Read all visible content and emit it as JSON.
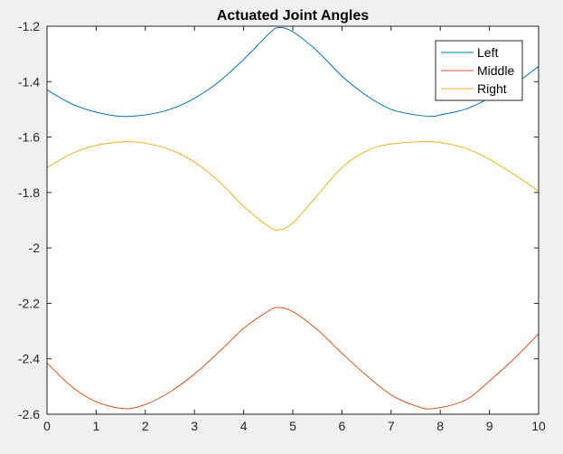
{
  "chart_data": {
    "type": "line",
    "title": "Actuated Joint Angles",
    "xlabel": "",
    "ylabel": "",
    "xlim": [
      0,
      10
    ],
    "ylim": [
      -2.6,
      -1.2
    ],
    "xticks": [
      0,
      1,
      2,
      3,
      4,
      5,
      6,
      7,
      8,
      9,
      10
    ],
    "yticks": [
      -2.6,
      -2.4,
      -2.2,
      -2.0,
      -1.8,
      -1.6,
      -1.4,
      -1.2
    ],
    "ytick_labels": [
      "-2.6",
      "-2.4",
      "-2.2",
      "-2",
      "-1.8",
      "-1.6",
      "-1.4",
      "-1.2"
    ],
    "grid": false,
    "legend_position": "top-right",
    "series": [
      {
        "name": "Left",
        "color": "#0072BD",
        "x": [
          0,
          0.5,
          1,
          1.5,
          2,
          2.5,
          3,
          3.5,
          4,
          4.5,
          4.7,
          5,
          5.5,
          6,
          6.5,
          7,
          7.5,
          7.85,
          8,
          8.5,
          9,
          9.5,
          10
        ],
        "y": [
          -1.43,
          -1.48,
          -1.51,
          -1.525,
          -1.52,
          -1.5,
          -1.46,
          -1.4,
          -1.32,
          -1.23,
          -1.205,
          -1.22,
          -1.29,
          -1.38,
          -1.45,
          -1.5,
          -1.52,
          -1.525,
          -1.52,
          -1.5,
          -1.46,
          -1.41,
          -1.345
        ]
      },
      {
        "name": "Middle",
        "color": "#D95319",
        "x": [
          0,
          0.5,
          1,
          1.57,
          2,
          2.5,
          3,
          3.5,
          4,
          4.5,
          4.71,
          5,
          5.5,
          6,
          6.5,
          7,
          7.5,
          7.85,
          8.5,
          9,
          9.5,
          10
        ],
        "y": [
          -2.415,
          -2.5,
          -2.555,
          -2.58,
          -2.565,
          -2.52,
          -2.455,
          -2.375,
          -2.29,
          -2.228,
          -2.215,
          -2.23,
          -2.295,
          -2.38,
          -2.46,
          -2.53,
          -2.57,
          -2.58,
          -2.55,
          -2.48,
          -2.4,
          -2.31
        ]
      },
      {
        "name": "Right",
        "color": "#EDB120",
        "x": [
          0,
          0.5,
          1,
          1.57,
          2,
          2.5,
          3,
          3.5,
          4,
          4.5,
          4.71,
          5,
          5.5,
          6,
          6.5,
          7,
          7.85,
          8.5,
          9,
          9.5,
          10
        ],
        "y": [
          -1.71,
          -1.66,
          -1.63,
          -1.617,
          -1.622,
          -1.645,
          -1.69,
          -1.76,
          -1.85,
          -1.922,
          -1.935,
          -1.91,
          -1.81,
          -1.71,
          -1.65,
          -1.625,
          -1.617,
          -1.64,
          -1.68,
          -1.735,
          -1.795
        ]
      }
    ]
  }
}
